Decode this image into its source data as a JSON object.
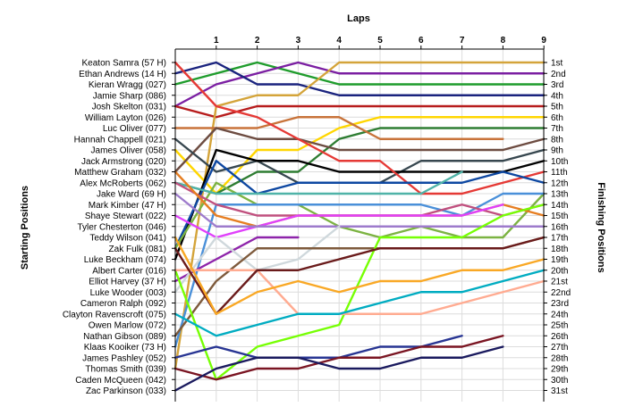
{
  "chart_data": {
    "type": "line",
    "title": "",
    "xlabel": "Laps",
    "ylabel_left": "Starting Positions",
    "ylabel_right": "Finishing Positions",
    "x_ticks": [
      1,
      2,
      3,
      4,
      5,
      6,
      7,
      8,
      9
    ],
    "y_range": [
      1,
      31
    ],
    "grid": true,
    "drivers": [
      "Keaton Samra (57 H)",
      "Ethan Andrews (14 H)",
      "Kieran Wragg (027)",
      "Jamie Sharp (086)",
      "Josh Skelton (031)",
      "William Layton (026)",
      "Luc Oliver (077)",
      "Hannah Chappell (021)",
      "James Oliver (058)",
      "Jack Armstrong (020)",
      "Matthew Graham (032)",
      "Alex McRoberts (062)",
      "Jake Ward (69 H)",
      "Mark Kimber (47 H)",
      "Shaye Stewart (022)",
      "Tyler Chesterton (046)",
      "Teddy Wilson (041)",
      "Zak Fulk (081)",
      "Luke Beckham (074)",
      "Albert Carter (016)",
      "Elliot Harvey (37 H)",
      "Luke Wooder (003)",
      "Cameron Ralph (092)",
      "Clayton Ravenscroft (075)",
      "Owen Marlow (072)",
      "Nathan Gibson (089)",
      "Klaas Kooiker (73 H)",
      "James Pashley (052)",
      "Thomas Smith (039)",
      "Caden McQueen (042)",
      "Zac Parkinson (033)"
    ],
    "finishing_labels": [
      "1st",
      "2nd",
      "3rd",
      "4th",
      "5th",
      "6th",
      "7th",
      "8th",
      "9th",
      "10th",
      "11th",
      "12th",
      "13th",
      "14th",
      "15th",
      "16th",
      "17th",
      "18th",
      "19th",
      "20th",
      "21st",
      "22nd",
      "23rd",
      "24th",
      "25th",
      "26th",
      "27th",
      "28th",
      "29th",
      "30th",
      "31st"
    ],
    "series": [
      {
        "color": "#1f9c2c",
        "values": [
          3,
          2,
          1,
          2,
          3,
          3,
          3,
          3,
          3,
          3
        ]
      },
      {
        "color": "#7b1fa2",
        "values": [
          5,
          3,
          2,
          1,
          2,
          2,
          2,
          2,
          2,
          2
        ]
      },
      {
        "color": "#1a237e",
        "values": [
          2,
          1,
          3,
          3,
          4,
          4,
          4,
          4,
          4,
          4
        ]
      },
      {
        "color": "#b71c1c",
        "values": [
          5,
          6,
          5,
          5,
          5,
          5,
          5,
          5,
          5,
          5
        ]
      },
      {
        "color": "#d4a43a",
        "values": [
          29,
          5,
          4,
          4,
          1,
          1,
          1,
          1,
          1,
          1
        ]
      },
      {
        "color": "#ffd600",
        "values": [
          9,
          13,
          9,
          9,
          7,
          6,
          6,
          6,
          6,
          6
        ]
      },
      {
        "color": "#2e7d32",
        "values": [
          12,
          13,
          11,
          11,
          8,
          7,
          7,
          7,
          7,
          7
        ]
      },
      {
        "color": "#c8733a",
        "values": [
          7,
          7,
          7,
          6,
          6,
          8,
          8,
          8,
          8
        ]
      },
      {
        "color": "#6d4c41",
        "values": [
          11,
          7,
          8,
          8,
          9,
          9,
          9,
          9,
          9,
          8
        ]
      },
      {
        "color": "#37474f",
        "values": [
          8,
          11,
          10,
          12,
          12,
          12,
          10,
          10,
          10,
          9
        ]
      },
      {
        "color": "#000000",
        "values": [
          19,
          9,
          10,
          10,
          11,
          11,
          11,
          11,
          11,
          10
        ]
      },
      {
        "color": "#e53935",
        "values": [
          1,
          5,
          6,
          8,
          10,
          10,
          13,
          13,
          12,
          11
        ]
      },
      {
        "color": "#0d47a1",
        "values": [
          18,
          10,
          13,
          12,
          12,
          12,
          12,
          12,
          11,
          12
        ]
      },
      {
        "color": "#7cb342",
        "values": [
          18,
          12,
          14,
          14,
          16,
          17,
          16,
          17,
          17,
          13
        ]
      },
      {
        "color": "#4fb3a8",
        "values": [
          12,
          13,
          13,
          13,
          13,
          13,
          13,
          11
        ]
      },
      {
        "color": "#4a90d9",
        "values": [
          27,
          14,
          14,
          14,
          14,
          14,
          14,
          15,
          13,
          13
        ]
      },
      {
        "color": "#c0507e",
        "values": [
          12,
          14,
          15,
          15,
          15,
          15,
          15,
          14,
          15,
          14
        ]
      },
      {
        "color": "#e67e22",
        "values": [
          11,
          15,
          16,
          15,
          15,
          15,
          15,
          15,
          14,
          15
        ]
      },
      {
        "color": "#e040fb",
        "values": [
          15,
          17,
          16,
          15,
          15,
          15,
          15,
          15,
          14
        ]
      },
      {
        "color": "#9e7bcc",
        "values": [
          13,
          16,
          16,
          16,
          16,
          16,
          16,
          16,
          16,
          16
        ]
      },
      {
        "color": "#8e24aa",
        "values": [
          21,
          19,
          17,
          17
        ]
      },
      {
        "color": "#cfd8dc",
        "values": [
          22,
          17,
          20,
          19,
          16
        ]
      },
      {
        "color": "#7e5a3c",
        "values": [
          26,
          21,
          18,
          18,
          18,
          18,
          18,
          18,
          18,
          17
        ]
      },
      {
        "color": "#76ff03",
        "values": [
          20,
          30,
          27,
          26,
          25,
          17,
          17,
          17,
          15,
          14
        ]
      },
      {
        "color": "#ffab91",
        "values": [
          20,
          20,
          20,
          24,
          24,
          24,
          24,
          23,
          22,
          21
        ]
      },
      {
        "color": "#6a1b1b",
        "values": [
          18,
          24,
          20,
          20,
          19,
          18,
          18,
          18,
          18,
          17
        ]
      },
      {
        "color": "#f9a825",
        "values": [
          17,
          24,
          22,
          21,
          22,
          21,
          21,
          20,
          20,
          19
        ]
      },
      {
        "color": "#00acc1",
        "values": [
          24,
          26,
          25,
          24,
          24,
          23,
          22,
          22,
          21,
          20
        ]
      },
      {
        "color": "#283593",
        "values": [
          28,
          27,
          28,
          28,
          28,
          27,
          27,
          26
        ]
      },
      {
        "color": "#7a1522",
        "values": [
          29,
          30,
          29,
          29,
          28,
          28,
          27,
          27,
          26
        ]
      },
      {
        "color": "#1a1a5e",
        "values": [
          31,
          29,
          28,
          28,
          29,
          29,
          28,
          28,
          27
        ]
      }
    ]
  }
}
